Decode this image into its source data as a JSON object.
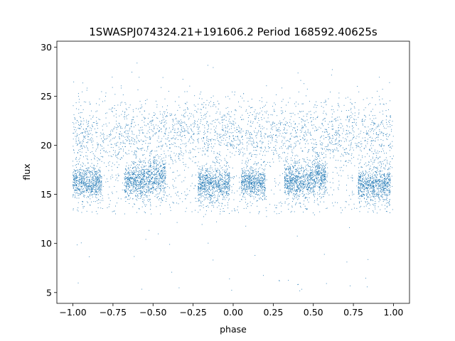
{
  "chart_data": {
    "type": "scatter",
    "title": "1SWASPJ074324.21+191606.2 Period 168592.40625s",
    "xlabel": "phase",
    "ylabel": "flux",
    "xlim": [
      -1.1,
      1.1
    ],
    "ylim": [
      3.9,
      30.6
    ],
    "xticks": [
      -1.0,
      -0.75,
      -0.5,
      -0.25,
      0.0,
      0.25,
      0.5,
      0.75,
      1.0
    ],
    "xtick_labels": [
      "−1.00",
      "−0.75",
      "−0.50",
      "−0.25",
      "0.00",
      "0.25",
      "0.50",
      "0.75",
      "1.00"
    ],
    "yticks": [
      5,
      10,
      15,
      20,
      25,
      30
    ],
    "ytick_labels": [
      "5",
      "10",
      "15",
      "20",
      "25",
      "30"
    ],
    "grid": false,
    "marker_color": "#1f77b4",
    "point_count_approx": 9000,
    "series": [
      {
        "phase_range": [
          -1.0,
          1.0
        ],
        "clusters": [
          {
            "x": [
              -1.0,
              -0.82
            ],
            "y_center": 16.2,
            "y_spread": 0.8
          },
          {
            "x": [
              -0.68,
              -0.52
            ],
            "y_center": 16.3,
            "y_spread": 0.9
          },
          {
            "x": [
              -0.52,
              -0.42
            ],
            "y_center": 16.8,
            "y_spread": 1.0
          },
          {
            "x": [
              -0.22,
              -0.02
            ],
            "y_center": 16.0,
            "y_spread": 0.9
          },
          {
            "x": [
              0.05,
              0.2
            ],
            "y_center": 16.2,
            "y_spread": 0.8
          },
          {
            "x": [
              0.32,
              0.48
            ],
            "y_center": 16.3,
            "y_spread": 0.9
          },
          {
            "x": [
              0.48,
              0.58
            ],
            "y_center": 16.8,
            "y_spread": 1.0
          },
          {
            "x": [
              0.78,
              0.98
            ],
            "y_center": 16.0,
            "y_spread": 0.9
          }
        ],
        "upper_band": {
          "y_center": 21.0,
          "y_spread": 1.8
        },
        "outlier_range": [
          5.0,
          29.0
        ]
      }
    ]
  }
}
